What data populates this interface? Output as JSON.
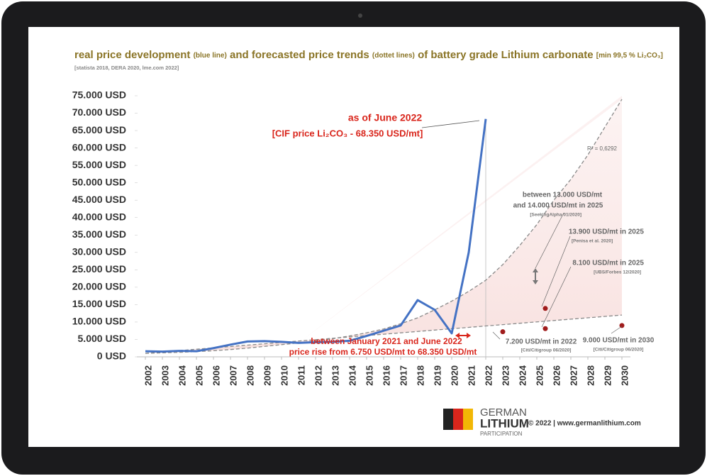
{
  "chart_data": {
    "type": "line",
    "title_parts": [
      "real price development",
      "(blue line)",
      "and forecasted price trends",
      "(dottet lines)",
      "of battery grade Lithium carbonate",
      "[min 99,5 % Li₂CO₃]"
    ],
    "subtitle": "[statista 2018, DERA 2020, lme.com 2022]",
    "categories": [
      "2002",
      "2003",
      "2004",
      "2005",
      "2006",
      "2007",
      "2008",
      "2009",
      "2010",
      "2011",
      "2012",
      "2013",
      "2014",
      "2015",
      "2016",
      "2017",
      "2018",
      "2019",
      "2020",
      "2021",
      "2022",
      "2023",
      "2024",
      "2025",
      "2026",
      "2027",
      "2028",
      "2029",
      "2030"
    ],
    "series": [
      {
        "color": "#4472c4",
        "style": "solid",
        "values": [
          1600,
          1500,
          1700,
          1600,
          2500,
          3500,
          4400,
          4500,
          4300,
          4000,
          4200,
          4300,
          4600,
          6000,
          7500,
          9000,
          16300,
          13500,
          6750,
          30000,
          68350,
          null,
          null,
          null,
          null,
          null,
          null,
          null,
          null
        ]
      },
      {
        "color": "#8a8a8a",
        "style": "dashed",
        "values": [
          1000,
          1150,
          1300,
          1500,
          1750,
          2100,
          2500,
          3000,
          3500,
          4000,
          4600,
          5200,
          6000,
          6900,
          8000,
          9500,
          11200,
          13500,
          16000,
          18800,
          22000,
          26500,
          32000,
          38000,
          45000,
          51000,
          58000,
          66000,
          74000
        ]
      },
      {
        "color": "#8a8a8a",
        "style": "dashed",
        "values": [
          1000,
          1390,
          1790,
          2180,
          2570,
          2960,
          3360,
          3750,
          4140,
          4540,
          4930,
          5320,
          5710,
          6110,
          6500,
          6890,
          7290,
          7680,
          8070,
          8460,
          8860,
          9250,
          9640,
          10040,
          10430,
          10820,
          11210,
          11610,
          12000
        ]
      }
    ],
    "ylim": [
      0,
      75000
    ],
    "yticks": [
      {
        "value": 0,
        "label": "0 USD"
      },
      {
        "value": 5000,
        "label": "5.000 USD"
      },
      {
        "value": 10000,
        "label": "10.000 USD"
      },
      {
        "value": 15000,
        "label": "15.000 USD"
      },
      {
        "value": 20000,
        "label": "20.000 USD"
      },
      {
        "value": 25000,
        "label": "25.000 USD"
      },
      {
        "value": 30000,
        "label": "30.000 USD"
      },
      {
        "value": 35000,
        "label": "35.000 USD"
      },
      {
        "value": 40000,
        "label": "40.000 USD"
      },
      {
        "value": 45000,
        "label": "45.000 USD"
      },
      {
        "value": 50000,
        "label": "50.000 USD"
      },
      {
        "value": 55000,
        "label": "55.000 USD"
      },
      {
        "value": 60000,
        "label": "60.000 USD"
      },
      {
        "value": 65000,
        "label": "65.000 USD"
      },
      {
        "value": 70000,
        "label": "70.000 USD"
      },
      {
        "value": 75000,
        "label": "75.000 USD"
      }
    ],
    "shade_color": "#f3c9c6",
    "peak_note": [
      "as of June 2022",
      "[CIF price Li₂CO₃ - 68.350 USD/mt]"
    ],
    "r_squared": "R² = 0,6292",
    "range_note": [
      "between 13.000 USD/mt",
      "and 14.000 USD/mt in 2025",
      "[SeekingAlpha 01/2020]"
    ],
    "forecasts": [
      {
        "x": 2025.5,
        "value": 13900,
        "color": "#a01c1c",
        "text": "13.900 USD/mt in 2025",
        "source": "[Penisa et al. 2020]"
      },
      {
        "x": 2025.5,
        "value": 8100,
        "color": "#a01c1c",
        "text": "8.100 USD/mt in 2025",
        "source": "[UBS/Forbes 12/2020]"
      },
      {
        "x": 2023,
        "value": 7200,
        "color": "#a01c1c",
        "text": "7.200 USD/mt in 2022",
        "source": "[Citi/Citigroup 06/2020]"
      },
      {
        "x": 2030,
        "value": 9000,
        "color": "#a01c1c",
        "text": "9.000 USD/mt in 2030",
        "source": "[Citi/Citigroup 06/2020]"
      }
    ],
    "rise_note": [
      "between January 2021 and June 2022",
      "price rise from 6.750 USD/mt to 68.350 USD/mt"
    ],
    "logo": [
      "GERMAN",
      "LITHIUM",
      "PARTICIPATION"
    ],
    "footer": "© 2022 | www.germanlithium.com"
  }
}
